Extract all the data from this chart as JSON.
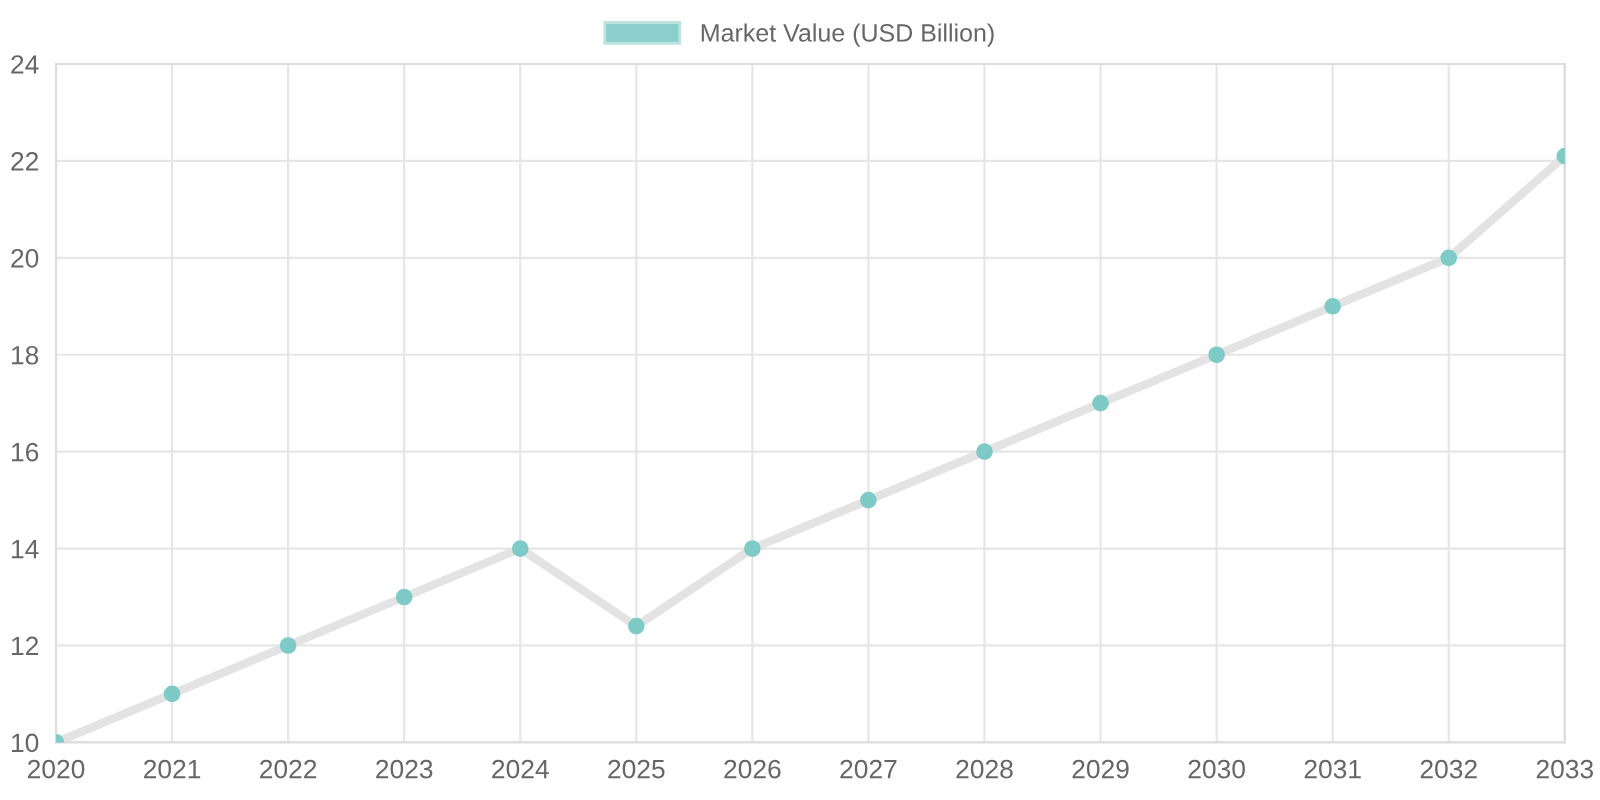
{
  "chart_data": {
    "type": "line",
    "categories": [
      "2020",
      "2021",
      "2022",
      "2023",
      "2024",
      "2025",
      "2026",
      "2027",
      "2028",
      "2029",
      "2030",
      "2031",
      "2032",
      "2033"
    ],
    "series": [
      {
        "name": "Market Value (USD Billion)",
        "color": "#7ecac6",
        "values": [
          10,
          11,
          12,
          13,
          14,
          12.4,
          14,
          15,
          16,
          17,
          18,
          19,
          20,
          22.1
        ]
      }
    ],
    "ylim": [
      10,
      24
    ],
    "yticks": [
      10,
      12,
      14,
      16,
      18,
      20,
      22,
      24
    ],
    "grid": true,
    "legend": "top",
    "marker": "circle",
    "line_style": "solid"
  }
}
